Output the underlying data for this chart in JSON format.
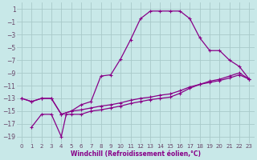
{
  "xlabel": "Windchill (Refroidissement éolien,°C)",
  "background_color": "#c8e8e8",
  "grid_color": "#a8caca",
  "line_color": "#880088",
  "xlim": [
    -0.5,
    23.5
  ],
  "ylim": [
    -20,
    2
  ],
  "xticks": [
    0,
    1,
    2,
    3,
    4,
    5,
    6,
    7,
    8,
    9,
    10,
    11,
    12,
    13,
    14,
    15,
    16,
    17,
    18,
    19,
    20,
    21,
    22,
    23
  ],
  "yticks": [
    1,
    -1,
    -3,
    -5,
    -7,
    -9,
    -11,
    -13,
    -15,
    -17,
    -19
  ],
  "series1_x": [
    0,
    1,
    2,
    3,
    4,
    5,
    6,
    7,
    8,
    9,
    10,
    11,
    12,
    13,
    14,
    15,
    16,
    17,
    18,
    19,
    20,
    21,
    22,
    23
  ],
  "series1_y": [
    -13,
    -13.5,
    -13,
    -13,
    -15.5,
    -15,
    -14,
    -13.5,
    -9.5,
    -9.3,
    -6.8,
    -3.8,
    -0.5,
    0.7,
    0.7,
    0.7,
    0.7,
    -0.5,
    -3.5,
    -5.5,
    -5.5,
    -7,
    -8,
    -10
  ],
  "series2_x": [
    1,
    2,
    3,
    4,
    4.5,
    5,
    6,
    7,
    8,
    9,
    10,
    11,
    12,
    13,
    14,
    15,
    16,
    17,
    18,
    19,
    20,
    21,
    22,
    23
  ],
  "series2_y": [
    -17.5,
    -15.5,
    -15.5,
    -19,
    -15.5,
    -15.5,
    -15.5,
    -15,
    -14.8,
    -14.5,
    -14.2,
    -13.8,
    -13.5,
    -13.2,
    -13,
    -12.8,
    -12.2,
    -11.4,
    -10.8,
    -10.3,
    -10,
    -9.5,
    -9,
    -10
  ],
  "series3_x": [
    0,
    1,
    2,
    3,
    4,
    5,
    6,
    7,
    8,
    9,
    10,
    11,
    12,
    13,
    14,
    15,
    16,
    17,
    18,
    19,
    20,
    21,
    22,
    23
  ],
  "series3_y": [
    -13,
    -13.5,
    -13,
    -13,
    -15.5,
    -15,
    -14.8,
    -14.5,
    -14.2,
    -14,
    -13.7,
    -13.3,
    -13,
    -12.8,
    -12.5,
    -12.3,
    -11.8,
    -11.2,
    -10.8,
    -10.5,
    -10.2,
    -9.8,
    -9.3,
    -10
  ]
}
